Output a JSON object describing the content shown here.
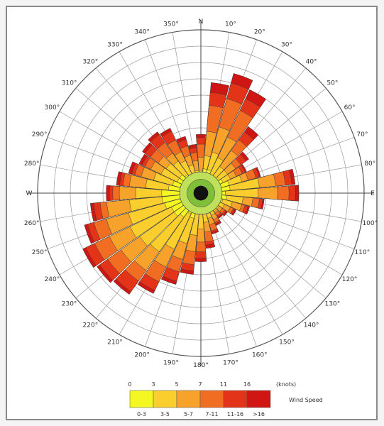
{
  "chart_data": {
    "type": "wind-rose",
    "title": "",
    "sector_width_deg": 10,
    "direction_labels": [
      "N",
      "10°",
      "20°",
      "30°",
      "40°",
      "50°",
      "60°",
      "70°",
      "80°",
      "E",
      "100°",
      "110°",
      "120°",
      "130°",
      "140°",
      "150°",
      "160°",
      "170°",
      "180°",
      "190°",
      "200°",
      "210°",
      "220°",
      "230°",
      "240°",
      "250°",
      "260°",
      "W",
      "280°",
      "290°",
      "300°",
      "310°",
      "320°",
      "330°",
      "340°",
      "350°"
    ],
    "radial_rings": 10,
    "categories": [
      "0-3",
      "3-5",
      "5-7",
      "7-11",
      "11-16",
      ">16"
    ],
    "bin_labels": [
      "0",
      "3",
      "5",
      "7",
      "11",
      "16"
    ],
    "legend_unit": "(knots)",
    "legend_title": "Wind Speed",
    "colors": [
      "#f4f722",
      "#f9ce2d",
      "#f6a22b",
      "#f06d21",
      "#e3341a",
      "#cf1612"
    ],
    "series_radii": [
      [
        1.0,
        1.5,
        1.5,
        1.3,
        1.2,
        1.4,
        1.5,
        1.8,
        1.8,
        1.5,
        1.6,
        1.4,
        1.2,
        1.0,
        1.0,
        1.2,
        1.0,
        1.0,
        1.2,
        1.3,
        1.6,
        1.4,
        1.8,
        2.0,
        2.0,
        2.3,
        2.4,
        2.4,
        2.0,
        1.8,
        1.6,
        1.6,
        1.4,
        1.3,
        1.2,
        1.0
      ],
      [
        1.4,
        2.3,
        2.6,
        2.4,
        2.0,
        2.0,
        2.0,
        2.6,
        3.6,
        3.5,
        2.6,
        2.0,
        1.6,
        1.4,
        1.4,
        1.5,
        1.6,
        1.8,
        2.2,
        2.6,
        3.2,
        3.8,
        4.4,
        4.6,
        4.8,
        4.6,
        4.4,
        4.0,
        3.4,
        3.0,
        2.7,
        2.6,
        2.4,
        2.2,
        1.8,
        1.4
      ],
      [
        2.2,
        3.8,
        4.2,
        3.8,
        3.2,
        2.6,
        2.4,
        3.0,
        4.6,
        4.7,
        3.2,
        2.6,
        2.0,
        1.6,
        1.5,
        1.8,
        2.0,
        2.4,
        3.0,
        3.6,
        4.2,
        5.0,
        5.8,
        6.0,
        6.2,
        6.0,
        5.8,
        5.0,
        4.4,
        3.8,
        3.4,
        3.2,
        3.0,
        2.8,
        2.4,
        2.0
      ],
      [
        3.0,
        5.4,
        6.0,
        5.6,
        4.0,
        3.0,
        2.8,
        3.5,
        5.2,
        5.4,
        3.6,
        2.8,
        2.2,
        1.8,
        1.7,
        2.0,
        2.4,
        3.0,
        3.6,
        4.4,
        5.0,
        6.0,
        6.6,
        7.0,
        7.2,
        6.8,
        6.2,
        5.4,
        4.8,
        4.2,
        3.8,
        3.8,
        3.8,
        3.6,
        3.0,
        2.5
      ],
      [
        3.4,
        6.2,
        7.0,
        6.4,
        4.6,
        3.4,
        3.0,
        3.7,
        5.6,
        5.8,
        3.8,
        3.0,
        2.3,
        1.9,
        1.8,
        2.1,
        2.5,
        3.2,
        4.0,
        4.8,
        5.6,
        6.6,
        7.4,
        7.6,
        7.8,
        7.2,
        6.6,
        5.6,
        5.0,
        4.4,
        4.0,
        4.2,
        4.4,
        4.2,
        3.4,
        2.8
      ],
      [
        3.6,
        6.8,
        7.6,
        7.0,
        5.0,
        3.6,
        3.1,
        3.8,
        5.8,
        6.0,
        3.9,
        3.1,
        2.4,
        2.0,
        1.9,
        2.2,
        2.6,
        3.4,
        4.2,
        5.0,
        5.8,
        6.8,
        7.6,
        7.8,
        8.0,
        7.4,
        6.8,
        5.8,
        5.2,
        4.6,
        4.2,
        4.4,
        4.6,
        4.4,
        3.6,
        3.0
      ]
    ],
    "grid": true,
    "legend_position": "bottom-right"
  }
}
